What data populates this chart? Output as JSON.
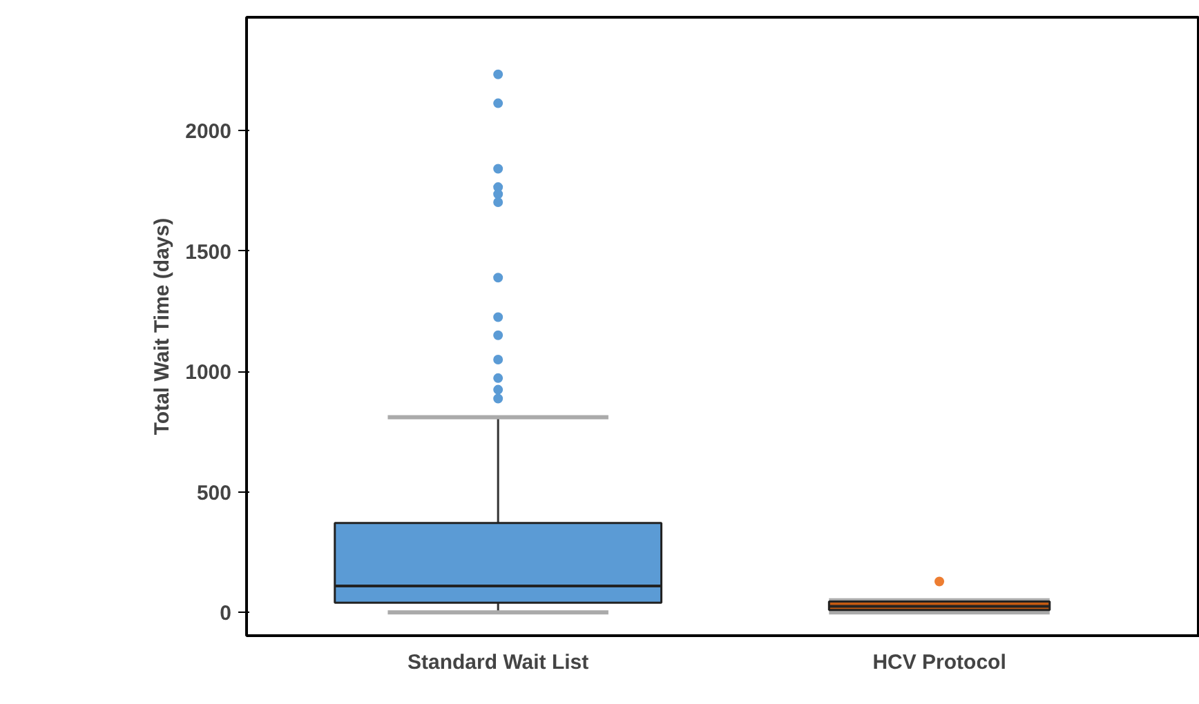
{
  "chart_data": {
    "type": "box",
    "ylabel": "Total Wait Time (days)",
    "categories": [
      "Standard Wait List",
      "HCV Protocol"
    ],
    "ylim": [
      -97,
      2470
    ],
    "yticks": [
      0,
      500,
      1000,
      1500,
      2000
    ],
    "grid": false,
    "series": [
      {
        "color": "#5b9bd5",
        "boxes": [
          {
            "low": 0,
            "q1": 40,
            "median": 109,
            "q3": 371,
            "high": 810,
            "outliers": [
              2233,
              2113,
              1841,
              1765,
              1736,
              1702,
              1389,
              1225,
              1150,
              1049,
              972,
              924,
              887
            ]
          },
          null
        ]
      },
      {
        "color": "#c55a11",
        "boxes": [
          null,
          {
            "low": 0,
            "q1": 10,
            "median": 25,
            "q3": 45,
            "high": 50,
            "outliers": [
              128
            ]
          }
        ]
      }
    ]
  }
}
